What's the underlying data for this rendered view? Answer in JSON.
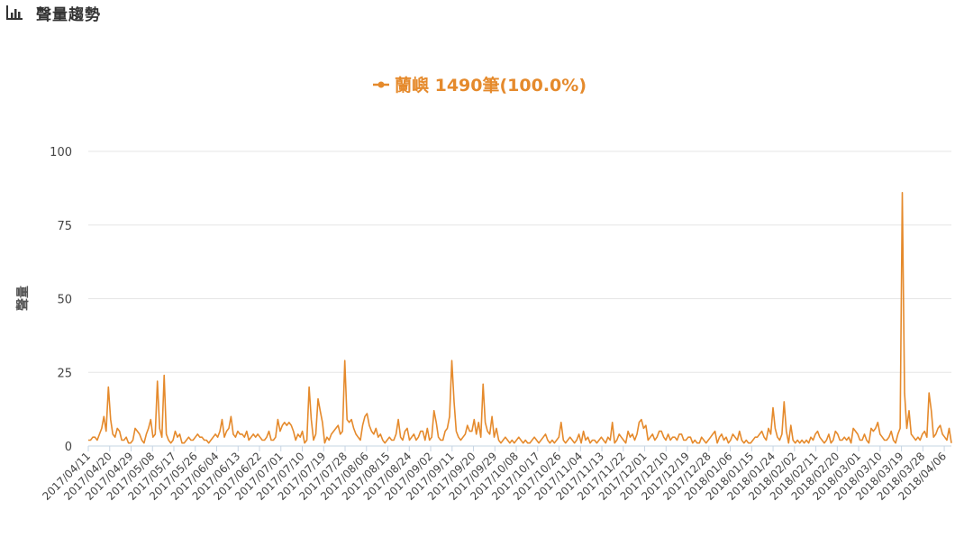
{
  "header": {
    "icon": "bar-chart-icon",
    "title": "聲量趨勢"
  },
  "colors": {
    "series": "#e58a2c",
    "grid": "#e6e6e6",
    "axis": "#c6d4e3"
  },
  "chart_data": {
    "type": "line",
    "title": "",
    "xlabel": "",
    "ylabel": "聲量",
    "ylim": [
      0,
      100
    ],
    "yticks": [
      0,
      25,
      50,
      75,
      100
    ],
    "grid": "horizontal",
    "legend_position": "top-center",
    "legend_label": "蘭嶼 1490筆(100.0%)",
    "x_start": "2017/04/11",
    "x_end": "2018/04/09",
    "x_tick_labels": [
      "2017/04/11",
      "2017/04/20",
      "2017/04/29",
      "2017/05/08",
      "2017/05/17",
      "2017/05/26",
      "2017/06/04",
      "2017/06/13",
      "2017/06/22",
      "2017/07/01",
      "2017/07/10",
      "2017/07/19",
      "2017/07/28",
      "2017/08/06",
      "2017/08/15",
      "2017/08/24",
      "2017/09/02",
      "2017/09/11",
      "2017/09/20",
      "2017/09/29",
      "2017/10/08",
      "2017/10/17",
      "2017/10/26",
      "2017/11/04",
      "2017/11/13",
      "2017/11/22",
      "2017/12/01",
      "2017/12/10",
      "2017/12/19",
      "2017/12/28",
      "2018/01/06",
      "2018/01/15",
      "2018/01/24",
      "2018/02/02",
      "2018/02/11",
      "2018/02/20",
      "2018/03/01",
      "2018/03/10",
      "2018/03/19",
      "2018/03/28",
      "2018/04/06"
    ],
    "series": [
      {
        "name": "蘭嶼",
        "values": [
          2,
          2,
          3,
          3,
          2,
          4,
          6,
          10,
          5,
          20,
          9,
          4,
          3,
          6,
          5,
          2,
          2,
          3,
          1,
          1,
          2,
          6,
          5,
          4,
          2,
          1,
          4,
          6,
          9,
          3,
          4,
          22,
          6,
          3,
          24,
          4,
          2,
          1,
          2,
          5,
          3,
          4,
          1,
          1,
          2,
          3,
          2,
          2,
          3,
          4,
          3,
          3,
          2,
          2,
          1,
          2,
          3,
          4,
          3,
          5,
          9,
          3,
          5,
          6,
          10,
          4,
          3,
          5,
          4,
          4,
          3,
          5,
          2,
          3,
          4,
          3,
          4,
          3,
          2,
          2,
          3,
          5,
          2,
          2,
          3,
          9,
          5,
          7,
          8,
          7,
          8,
          7,
          5,
          2,
          4,
          3,
          5,
          1,
          2,
          20,
          9,
          2,
          4,
          16,
          12,
          8,
          1,
          3,
          2,
          4,
          5,
          6,
          7,
          4,
          5,
          29,
          9,
          8,
          9,
          6,
          4,
          3,
          2,
          7,
          10,
          11,
          7,
          5,
          4,
          6,
          3,
          4,
          2,
          1,
          2,
          3,
          2,
          2,
          4,
          9,
          3,
          2,
          5,
          6,
          2,
          3,
          4,
          2,
          3,
          5,
          5,
          2,
          6,
          2,
          3,
          12,
          8,
          3,
          2,
          2,
          5,
          6,
          10,
          29,
          15,
          5,
          3,
          2,
          3,
          4,
          7,
          5,
          5,
          9,
          4,
          8,
          3,
          21,
          8,
          5,
          4,
          10,
          3,
          6,
          2,
          1,
          2,
          3,
          2,
          1,
          2,
          1,
          2,
          3,
          2,
          1,
          2,
          1,
          1,
          2,
          3,
          2,
          1,
          2,
          3,
          4,
          2,
          1,
          2,
          1,
          2,
          3,
          8,
          2,
          1,
          2,
          3,
          2,
          1,
          2,
          4,
          1,
          5,
          2,
          3,
          1,
          2,
          2,
          1,
          2,
          3,
          2,
          1,
          3,
          2,
          8,
          1,
          2,
          4,
          3,
          2,
          1,
          5,
          3,
          4,
          2,
          4,
          8,
          9,
          6,
          7,
          2,
          3,
          4,
          2,
          3,
          5,
          5,
          3,
          2,
          4,
          2,
          3,
          3,
          2,
          4,
          4,
          2,
          2,
          3,
          3,
          1,
          2,
          1,
          1,
          3,
          2,
          1,
          2,
          3,
          4,
          5,
          1,
          3,
          4,
          2,
          3,
          1,
          2,
          4,
          3,
          2,
          5,
          2,
          1,
          2,
          1,
          1,
          2,
          3,
          3,
          4,
          5,
          3,
          2,
          6,
          4,
          13,
          6,
          3,
          2,
          4,
          15,
          5,
          1,
          7,
          2,
          1,
          2,
          1,
          2,
          1,
          2,
          1,
          3,
          2,
          4,
          5,
          3,
          2,
          1,
          2,
          4,
          1,
          2,
          5,
          4,
          2,
          2,
          3,
          2,
          3,
          1,
          6,
          5,
          4,
          2,
          2,
          4,
          2,
          1,
          6,
          5,
          6,
          8,
          4,
          3,
          2,
          2,
          3,
          5,
          2,
          1,
          4,
          6,
          86,
          18,
          6,
          12,
          4,
          3,
          2,
          3,
          2,
          4,
          5,
          3,
          18,
          12,
          3,
          4,
          6,
          7,
          4,
          3,
          2,
          6,
          1
        ]
      }
    ]
  }
}
